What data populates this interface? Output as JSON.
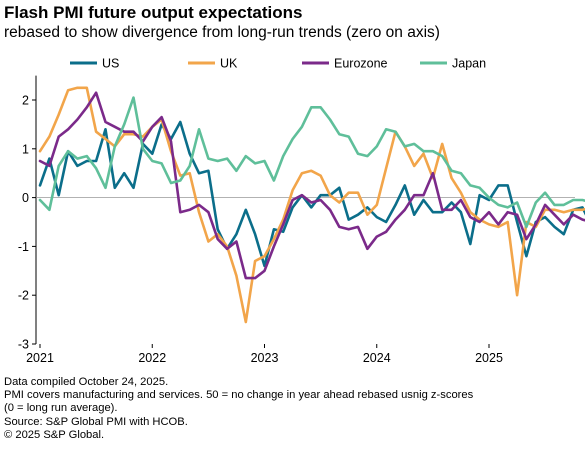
{
  "chart_data": {
    "type": "line",
    "title": "Flash PMI future output expectations",
    "subtitle": "rebased to show divergence from long-run trends (zero on axis)",
    "xlabel": "",
    "ylabel": "",
    "ylim": [
      -3,
      2.5
    ],
    "yticks": [
      2,
      1,
      0,
      -1,
      -2,
      -3
    ],
    "xticks": [
      "2021",
      "2022",
      "2023",
      "2024",
      "2025"
    ],
    "grid": false,
    "legend": "top",
    "start": "2021-01",
    "series": [
      {
        "name": "US",
        "color": "#0b6e8a",
        "values": [
          0.25,
          0.8,
          0.05,
          0.95,
          0.65,
          0.75,
          0.75,
          1.4,
          0.2,
          0.5,
          0.2,
          1.1,
          0.9,
          1.5,
          1.2,
          1.55,
          0.9,
          0.5,
          0.55,
          -0.65,
          -1.05,
          -0.75,
          -0.25,
          -0.75,
          -1.4,
          -0.65,
          -0.7,
          -0.2,
          0.05,
          -0.2,
          0.05,
          0.05,
          0.2,
          -0.45,
          -0.35,
          -0.2,
          -0.4,
          -0.5,
          -0.15,
          0.25,
          -0.35,
          -0.05,
          -0.3,
          -0.3,
          -0.1,
          -0.3,
          -0.95,
          0.05,
          -0.05,
          0.25,
          0.25,
          -0.5,
          -1.2,
          -0.5,
          -0.4,
          -0.6,
          -0.75,
          -0.25,
          -0.2,
          -0.6
        ]
      },
      {
        "name": "UK",
        "color": "#f2a54a",
        "values": [
          0.95,
          1.25,
          1.7,
          2.2,
          2.25,
          2.25,
          1.35,
          1.2,
          1.05,
          1.3,
          1.3,
          1.25,
          1.45,
          1.6,
          0.95,
          0.45,
          0.5,
          -0.3,
          -0.9,
          -0.75,
          -1.0,
          -1.6,
          -2.55,
          -1.3,
          -1.2,
          -0.85,
          -0.45,
          0.15,
          0.5,
          0.55,
          0.45,
          0.05,
          -0.1,
          0.1,
          0.1,
          -0.35,
          -0.15,
          0.6,
          1.35,
          1.05,
          0.65,
          0.9,
          0.4,
          1.1,
          0.4,
          0.1,
          -0.3,
          -0.45,
          -0.55,
          -0.6,
          -0.5,
          -2.0,
          -0.5,
          -0.6,
          -0.25,
          -0.25,
          -0.3,
          -0.25,
          -0.25,
          -0.2
        ]
      },
      {
        "name": "Eurozone",
        "color": "#7b2a8a",
        "values": [
          0.75,
          0.65,
          1.25,
          1.4,
          1.6,
          1.85,
          2.15,
          1.55,
          1.45,
          1.35,
          1.35,
          1.15,
          1.45,
          1.65,
          1.15,
          -0.3,
          -0.25,
          -0.15,
          -0.3,
          -0.85,
          -1.05,
          -0.9,
          -1.65,
          -1.65,
          -1.5,
          -1.0,
          -0.55,
          -0.05,
          0.05,
          -0.1,
          -0.05,
          -0.25,
          -0.6,
          -0.65,
          -0.6,
          -1.05,
          -0.8,
          -0.7,
          -0.45,
          -0.25,
          0.05,
          0.05,
          0.5,
          -0.25,
          -0.25,
          -0.05,
          -0.4,
          -0.5,
          -0.3,
          -0.55,
          -0.3,
          -0.35,
          -0.85,
          -0.55,
          -0.15,
          -0.35,
          -0.55,
          -0.35,
          -0.45,
          -0.5
        ]
      },
      {
        "name": "Japan",
        "color": "#5fbf9a",
        "values": [
          -0.05,
          -0.25,
          0.65,
          0.95,
          0.8,
          0.85,
          0.6,
          0.2,
          1.05,
          1.5,
          2.05,
          1.0,
          0.75,
          0.7,
          0.3,
          0.35,
          0.65,
          1.4,
          0.8,
          0.75,
          0.8,
          0.55,
          0.85,
          0.7,
          0.75,
          0.35,
          0.85,
          1.2,
          1.45,
          1.85,
          1.85,
          1.6,
          1.3,
          1.25,
          0.9,
          0.85,
          1.05,
          1.4,
          1.35,
          1.05,
          1.1,
          0.95,
          0.95,
          0.85,
          0.55,
          0.5,
          0.25,
          0.2,
          0.0,
          -0.15,
          -0.2,
          -0.1,
          -0.6,
          -0.1,
          0.1,
          -0.15,
          -0.15,
          -0.05,
          -0.05,
          -0.1
        ]
      }
    ]
  },
  "footer": {
    "line1": "Data compiled October 24, 2025.",
    "line2": "PMI covers manufacturing and services. 50 = no change in year ahead rebased usnig z-scores",
    "line3": "(0 = long run average).",
    "line4": "Source: S&P Global PMI with HCOB.",
    "line5": "© 2025 S&P Global."
  }
}
